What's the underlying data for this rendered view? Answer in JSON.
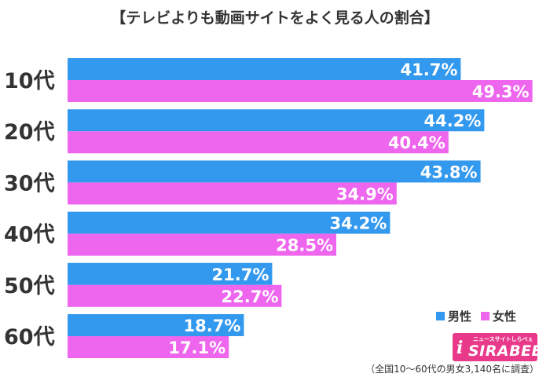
{
  "title": "【テレビよりも動画サイトをよく見る人の割合】",
  "legend": [
    {
      "name": "男性",
      "color": "#3399ee"
    },
    {
      "name": "女性",
      "color": "#ee66ee"
    }
  ],
  "logo": {
    "tagline": "ニュースサイトしらべぇ",
    "name": "SIRABEE"
  },
  "footnote": "（全国10～60代の男女3,140名に調査）",
  "chart_data": {
    "type": "bar",
    "orientation": "horizontal",
    "title": "【テレビよりも動画サイトをよく見る人の割合】",
    "categories": [
      "10代",
      "20代",
      "30代",
      "40代",
      "50代",
      "60代"
    ],
    "series": [
      {
        "name": "男性",
        "color": "#3399ee",
        "values": [
          41.7,
          44.2,
          43.8,
          34.2,
          21.7,
          18.7
        ]
      },
      {
        "name": "女性",
        "color": "#ee66ee",
        "values": [
          49.3,
          40.4,
          34.9,
          28.5,
          22.7,
          17.1
        ]
      }
    ],
    "xlim": [
      0,
      50
    ],
    "grid": false,
    "legend_position": "bottom-right",
    "value_suffix": "%"
  }
}
